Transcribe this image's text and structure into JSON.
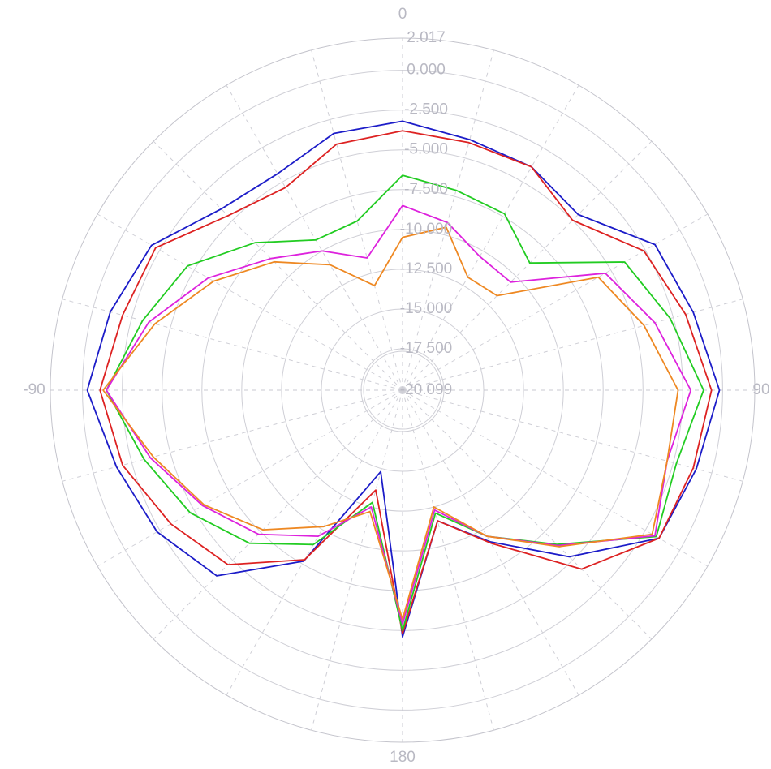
{
  "chart_data": {
    "type": "polar-line",
    "r_min": -20.099,
    "r_max": 2.017,
    "ring_labels": [
      "2.017",
      "0.000",
      "-2.500",
      "-5.000",
      "-7.500",
      "-10.000",
      "-12.500",
      "-15.000",
      "-17.500",
      "-20.099"
    ],
    "ring_values": [
      2.017,
      0,
      -2.5,
      -5,
      -7.5,
      -10,
      -12.5,
      -15,
      -17.5,
      -20.099
    ],
    "angle_labels": [
      {
        "angle": 0,
        "text": "0"
      },
      {
        "angle": 90,
        "text": "90"
      },
      {
        "angle": 180,
        "text": "180"
      },
      {
        "angle": -90,
        "text": "-90"
      }
    ],
    "spoke_step_deg": 15,
    "grid": true,
    "series": [
      {
        "color": "#1c1cc8",
        "angles": [
          0,
          15,
          30,
          45,
          60,
          75,
          90,
          105,
          120,
          135,
          150,
          165,
          180,
          -165,
          -150,
          -135,
          -120,
          -105,
          -90,
          -75,
          -60,
          -45,
          -30,
          -15
        ],
        "values": [
          -3.2,
          -3.8,
          -3.9,
          -4.5,
          -1.8,
          -1.2,
          -0.2,
          -1.0,
          -1.5,
          -5.3,
          -9.1,
          -11.6,
          -4.6,
          -14.8,
          -7.7,
          -3.6,
          -2.3,
          -1.5,
          -0.3,
          -1.1,
          -1.9,
          -4.0,
          -4.4,
          -3.4
        ]
      },
      {
        "color": "#dd2222",
        "angles": [
          0,
          15,
          30,
          45,
          60,
          75,
          90,
          105,
          120,
          135,
          150,
          165,
          180,
          -165,
          -150,
          -135,
          -120,
          -105,
          -90,
          -75,
          -60,
          -45,
          -30,
          -15
        ],
        "values": [
          -3.8,
          -4.0,
          -3.9,
          -5.0,
          -2.6,
          -1.7,
          -0.7,
          -1.2,
          -1.5,
          -4.2,
          -9.0,
          -11.6,
          -4.8,
          -13.6,
          -7.8,
          -4.6,
          -3.3,
          -1.9,
          -1.1,
          -1.9,
          -2.2,
          -4.6,
          -5.4,
          -4.1
        ]
      },
      {
        "color": "#22cc22",
        "angles": [
          0,
          15,
          30,
          45,
          60,
          75,
          90,
          105,
          120,
          135,
          150,
          165,
          180,
          -165,
          -150,
          -135,
          -120,
          -105,
          -90,
          -75,
          -60,
          -45,
          -30,
          -15
        ],
        "values": [
          -6.6,
          -7.1,
          -7.3,
          -8.8,
          -4.0,
          -2.7,
          -1.2,
          -2.3,
          -1.7,
          -6.4,
          -9.5,
          -12.1,
          -5.0,
          -12.8,
          -8.9,
          -6.5,
          -4.7,
          -3.3,
          -1.5,
          -3.2,
          -4.5,
          -7.0,
          -9.2,
          -9.1
        ]
      },
      {
        "color": "#dd22dd",
        "angles": [
          0,
          15,
          30,
          45,
          60,
          75,
          90,
          105,
          120,
          135,
          150,
          165,
          180,
          -165,
          -150,
          -135,
          -120,
          -105,
          -90,
          -75,
          -60,
          -45,
          -30,
          -15
        ],
        "values": [
          -8.5,
          -9.2,
          -10.4,
          -10.5,
          -5.4,
          -3.7,
          -2.0,
          -2.9,
          -1.8,
          -6.3,
          -9.5,
          -12.3,
          -5.4,
          -12.5,
          -9.5,
          -7.3,
          -5.6,
          -3.7,
          -1.5,
          -3.6,
          -6.0,
          -8.4,
          -10.0,
          -11.5
        ]
      },
      {
        "color": "#ee8822",
        "angles": [
          0,
          15,
          30,
          45,
          60,
          75,
          90,
          105,
          120,
          135,
          150,
          165,
          180,
          -165,
          -150,
          -135,
          -120,
          -105,
          -90,
          -75,
          -60,
          -45,
          -30,
          -15
        ],
        "values": [
          -10.5,
          -9.5,
          -11.9,
          -11.7,
          -5.9,
          -4.4,
          -2.8,
          -2.9,
          -2.0,
          -6.2,
          -9.5,
          -12.5,
          -5.7,
          -12.2,
          -10.2,
          -7.7,
          -5.7,
          -3.9,
          -1.3,
          -4.0,
          -6.4,
          -8.7,
          -11.0,
          -13.3
        ]
      }
    ]
  }
}
